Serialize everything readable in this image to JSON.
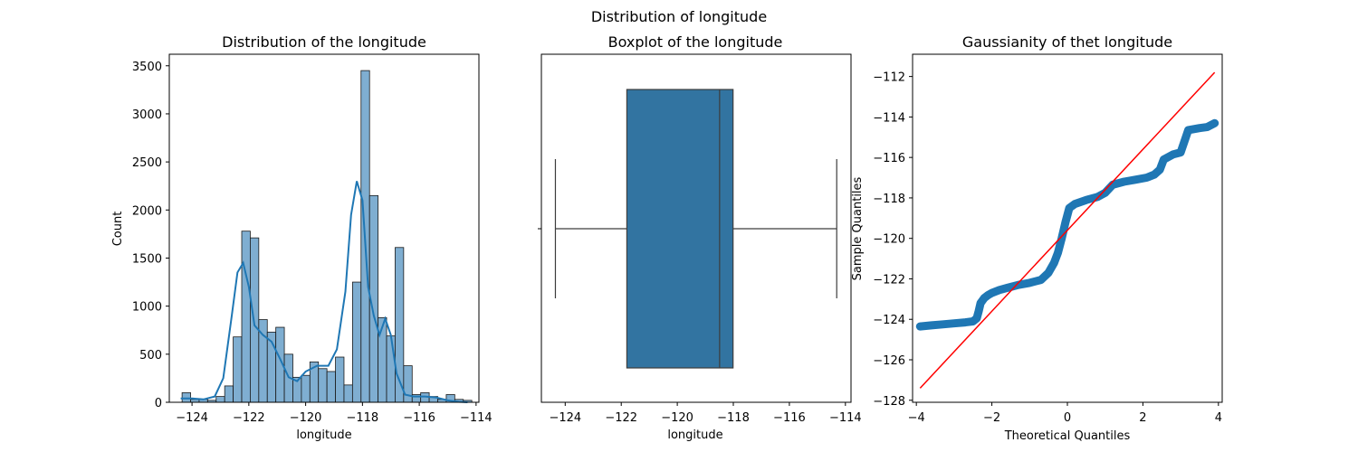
{
  "suptitle": "Distribution of longitude",
  "colors": {
    "bar_fill": "#7faed1",
    "bar_edge": "#1a1a1a",
    "kde": "#1f77b4",
    "box_fill": "#3274a1",
    "box_line": "#3d3d3d",
    "qq_points": "#1f77b4",
    "qq_line": "#ff0000"
  },
  "chart_data": [
    {
      "type": "bar",
      "subtype": "histogram_with_kde",
      "title": "Distribution of the longitude",
      "xlabel": "longitude",
      "ylabel": "Count",
      "xlim": [
        -124.8,
        -113.9
      ],
      "ylim": [
        0,
        3620
      ],
      "xticks": [
        -124,
        -122,
        -120,
        -118,
        -116,
        -114
      ],
      "xtick_labels": [
        "−124",
        "−122",
        "−120",
        "−118",
        "−116",
        "−114"
      ],
      "yticks": [
        0,
        500,
        1000,
        1500,
        2000,
        2500,
        3000,
        3500
      ],
      "ytick_labels": [
        "0",
        "500",
        "1000",
        "1500",
        "2000",
        "2500",
        "3000",
        "3500"
      ],
      "bin_start": -124.35,
      "bin_width": 0.3,
      "counts": [
        100,
        30,
        30,
        20,
        60,
        170,
        680,
        1780,
        1710,
        860,
        730,
        780,
        500,
        260,
        280,
        420,
        350,
        320,
        470,
        180,
        1250,
        3450,
        2150,
        880,
        690,
        1610,
        380,
        80,
        100,
        60,
        30,
        80,
        30,
        20
      ],
      "kde_x": [
        -124.4,
        -124.0,
        -123.6,
        -123.2,
        -122.9,
        -122.6,
        -122.4,
        -122.2,
        -122.0,
        -121.8,
        -121.5,
        -121.2,
        -120.9,
        -120.6,
        -120.3,
        -120.0,
        -119.6,
        -119.2,
        -118.9,
        -118.6,
        -118.4,
        -118.2,
        -118.0,
        -117.8,
        -117.6,
        -117.4,
        -117.2,
        -117.0,
        -116.8,
        -116.5,
        -116.2,
        -115.8,
        -115.4,
        -115.0,
        -114.6,
        -114.3
      ],
      "kde_y": [
        40,
        40,
        30,
        60,
        250,
        900,
        1350,
        1450,
        1200,
        800,
        700,
        630,
        450,
        260,
        220,
        320,
        380,
        380,
        550,
        1150,
        1950,
        2300,
        2100,
        1200,
        900,
        700,
        870,
        700,
        300,
        80,
        60,
        60,
        50,
        20,
        5,
        0
      ]
    },
    {
      "type": "box",
      "title": "Boxplot of the longitude",
      "xlabel": "longitude",
      "xlim": [
        -124.85,
        -113.8
      ],
      "xticks": [
        -124,
        -122,
        -120,
        -118,
        -116,
        -114
      ],
      "xtick_labels": [
        "−124",
        "−122",
        "−120",
        "−118",
        "−116",
        "−114"
      ],
      "stats": {
        "whisker_low": -124.35,
        "q1": -121.8,
        "median": -118.49,
        "q3": -118.01,
        "whisker_high": -114.31
      }
    },
    {
      "type": "scatter",
      "subtype": "qq_plot",
      "title": "Gaussianity of thet  longitude",
      "xlabel": "Theoretical Quantiles",
      "ylabel": "Sample Quantiles",
      "xlim": [
        -4.1,
        4.1
      ],
      "ylim": [
        -128.1,
        -110.9
      ],
      "xticks": [
        -4,
        -2,
        0,
        2,
        4
      ],
      "xtick_labels": [
        "−4",
        "−2",
        "0",
        "2",
        "4"
      ],
      "yticks": [
        -128,
        -126,
        -124,
        -122,
        -120,
        -118,
        -116,
        -114,
        -112
      ],
      "ytick_labels": [
        "−128",
        "−126",
        "−124",
        "−122",
        "−120",
        "−118",
        "−116",
        "−114",
        "−112"
      ],
      "points_x": [
        -3.9,
        -3.6,
        -3.3,
        -3.0,
        -2.7,
        -2.5,
        -2.4,
        -2.35,
        -2.3,
        -2.2,
        -2.1,
        -2.0,
        -1.8,
        -1.6,
        -1.3,
        -1.0,
        -0.7,
        -0.5,
        -0.35,
        -0.25,
        -0.15,
        -0.05,
        0.05,
        0.2,
        0.5,
        0.8,
        1.0,
        1.2,
        1.5,
        1.8,
        2.1,
        2.3,
        2.45,
        2.55,
        2.8,
        3.0,
        3.1,
        3.2,
        3.5,
        3.7,
        3.9
      ],
      "points_y": [
        -124.35,
        -124.3,
        -124.25,
        -124.2,
        -124.15,
        -124.1,
        -123.95,
        -123.6,
        -123.2,
        -122.95,
        -122.8,
        -122.7,
        -122.55,
        -122.45,
        -122.3,
        -122.2,
        -122.05,
        -121.7,
        -121.2,
        -120.7,
        -120.0,
        -119.2,
        -118.5,
        -118.3,
        -118.1,
        -117.95,
        -117.75,
        -117.35,
        -117.2,
        -117.1,
        -117.0,
        -116.85,
        -116.6,
        -116.1,
        -115.85,
        -115.75,
        -115.2,
        -114.65,
        -114.55,
        -114.5,
        -114.31
      ],
      "line": {
        "x": [
          -3.9,
          3.9
        ],
        "y": [
          -127.4,
          -111.8
        ]
      }
    }
  ]
}
